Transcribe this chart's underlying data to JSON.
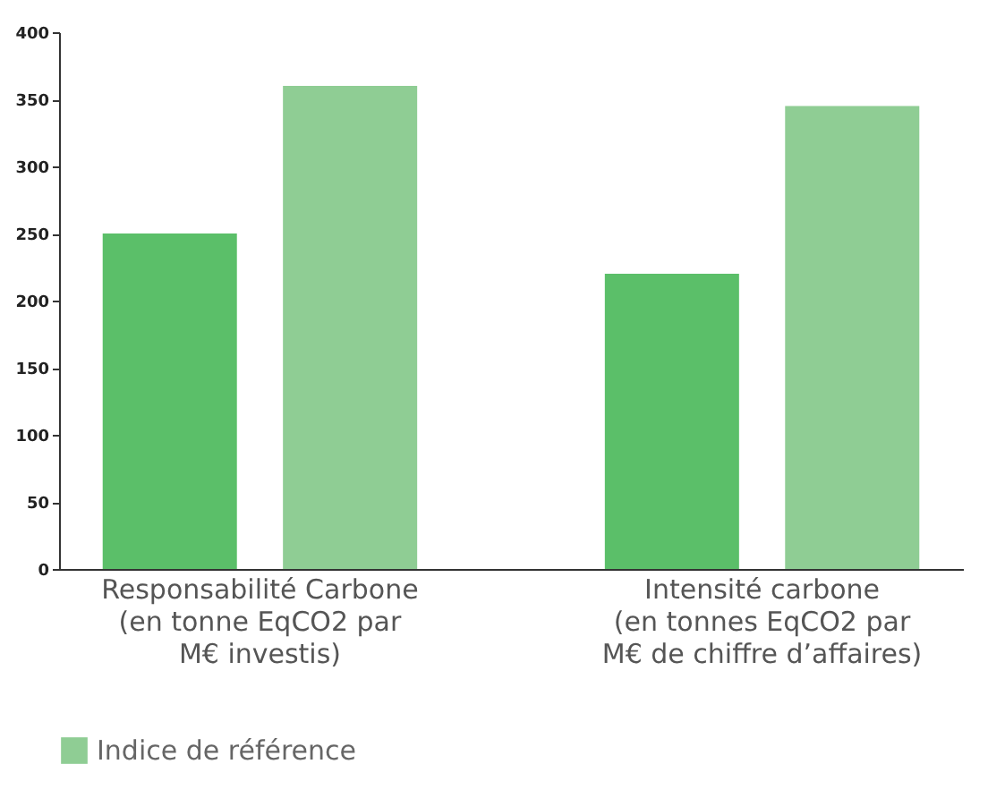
{
  "chart_data": {
    "type": "bar",
    "categories": [
      "Responsabilité Carbone\n(en tonne EqCO2 par\nM€ investis)",
      "Intensité carbone\n(en tonnes EqCO2 par\nM€ de chiffre d’affaires)"
    ],
    "series": [
      {
        "color": "#5bbf69",
        "values": [
          250,
          220
        ]
      },
      {
        "name": "Indice de référence",
        "color": "#8fcd94",
        "values": [
          360,
          345
        ]
      }
    ],
    "ylim": [
      0,
      400
    ],
    "yticks": [
      0,
      50,
      100,
      150,
      200,
      250,
      300,
      350,
      400
    ],
    "grid": false,
    "legend": "bottom left"
  }
}
